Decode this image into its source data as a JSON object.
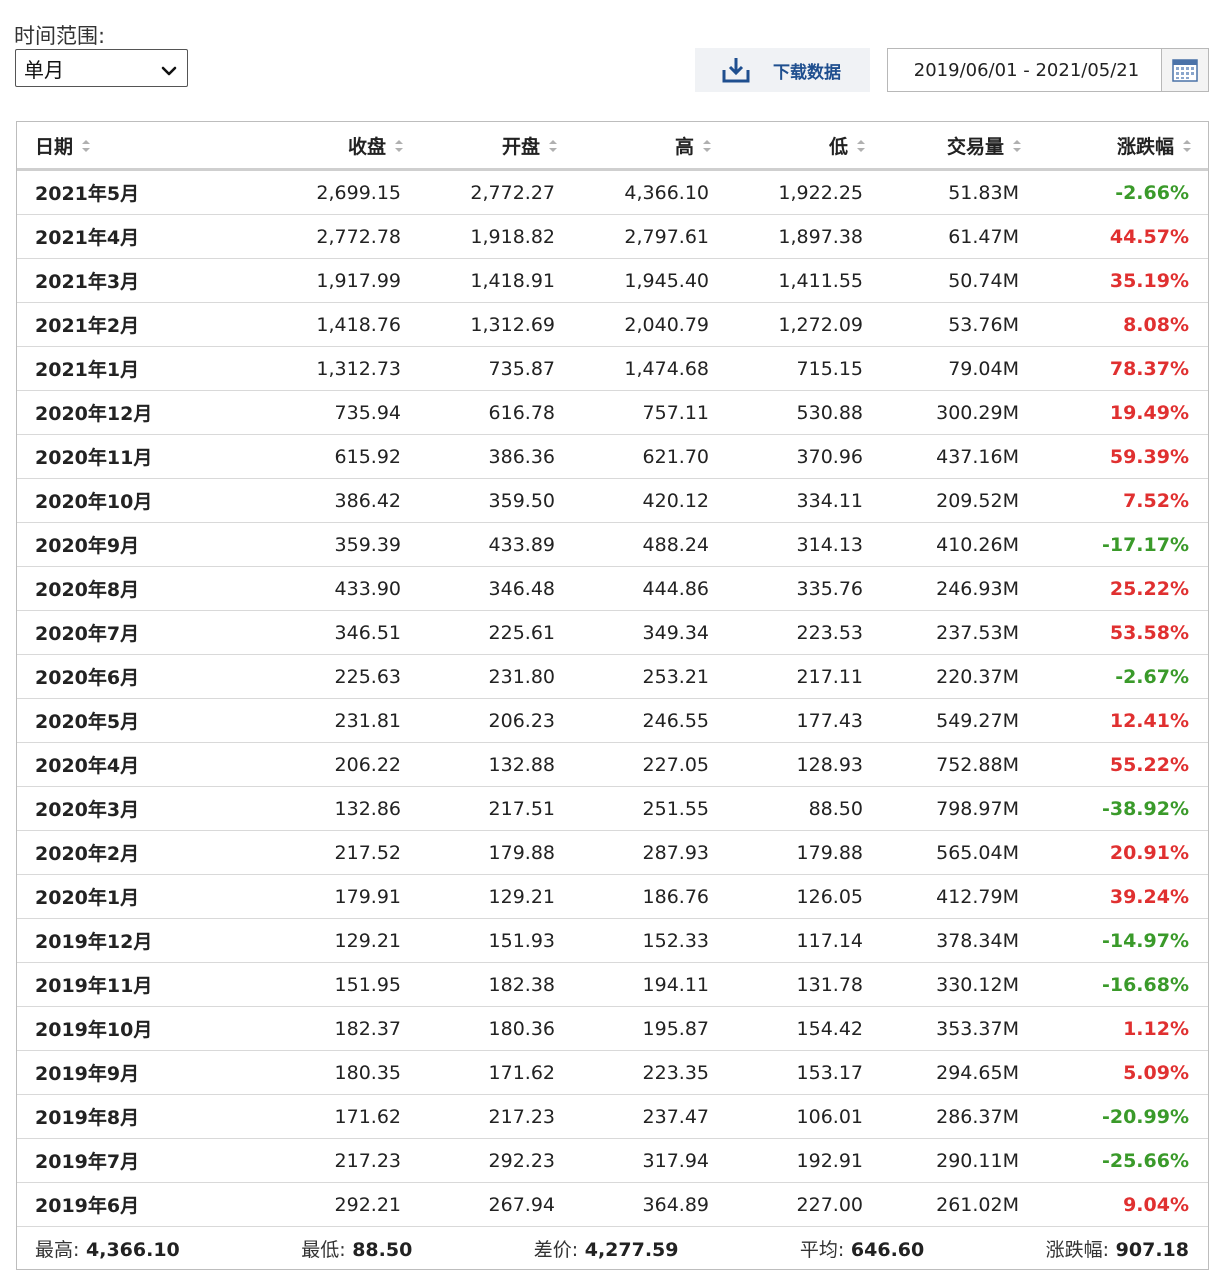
{
  "controls": {
    "range_label": "时间范围:",
    "range_value": "单月",
    "download_label": "下载数据",
    "date_range": "2019/06/01 - 2021/05/21"
  },
  "colors": {
    "up": "#e03030",
    "down": "#3a9a2a",
    "link": "#1f4f8f"
  },
  "table": {
    "headers": [
      "日期",
      "收盘",
      "开盘",
      "高",
      "低",
      "交易量",
      "涨跌幅"
    ],
    "rows": [
      {
        "date": "2021年5月",
        "close": "2,699.15",
        "open": "2,772.27",
        "high": "4,366.10",
        "low": "1,922.25",
        "volume": "51.83M",
        "change": "-2.66%",
        "dir": "down"
      },
      {
        "date": "2021年4月",
        "close": "2,772.78",
        "open": "1,918.82",
        "high": "2,797.61",
        "low": "1,897.38",
        "volume": "61.47M",
        "change": "44.57%",
        "dir": "up"
      },
      {
        "date": "2021年3月",
        "close": "1,917.99",
        "open": "1,418.91",
        "high": "1,945.40",
        "low": "1,411.55",
        "volume": "50.74M",
        "change": "35.19%",
        "dir": "up"
      },
      {
        "date": "2021年2月",
        "close": "1,418.76",
        "open": "1,312.69",
        "high": "2,040.79",
        "low": "1,272.09",
        "volume": "53.76M",
        "change": "8.08%",
        "dir": "up"
      },
      {
        "date": "2021年1月",
        "close": "1,312.73",
        "open": "735.87",
        "high": "1,474.68",
        "low": "715.15",
        "volume": "79.04M",
        "change": "78.37%",
        "dir": "up"
      },
      {
        "date": "2020年12月",
        "close": "735.94",
        "open": "616.78",
        "high": "757.11",
        "low": "530.88",
        "volume": "300.29M",
        "change": "19.49%",
        "dir": "up"
      },
      {
        "date": "2020年11月",
        "close": "615.92",
        "open": "386.36",
        "high": "621.70",
        "low": "370.96",
        "volume": "437.16M",
        "change": "59.39%",
        "dir": "up"
      },
      {
        "date": "2020年10月",
        "close": "386.42",
        "open": "359.50",
        "high": "420.12",
        "low": "334.11",
        "volume": "209.52M",
        "change": "7.52%",
        "dir": "up"
      },
      {
        "date": "2020年9月",
        "close": "359.39",
        "open": "433.89",
        "high": "488.24",
        "low": "314.13",
        "volume": "410.26M",
        "change": "-17.17%",
        "dir": "down"
      },
      {
        "date": "2020年8月",
        "close": "433.90",
        "open": "346.48",
        "high": "444.86",
        "low": "335.76",
        "volume": "246.93M",
        "change": "25.22%",
        "dir": "up"
      },
      {
        "date": "2020年7月",
        "close": "346.51",
        "open": "225.61",
        "high": "349.34",
        "low": "223.53",
        "volume": "237.53M",
        "change": "53.58%",
        "dir": "up"
      },
      {
        "date": "2020年6月",
        "close": "225.63",
        "open": "231.80",
        "high": "253.21",
        "low": "217.11",
        "volume": "220.37M",
        "change": "-2.67%",
        "dir": "down"
      },
      {
        "date": "2020年5月",
        "close": "231.81",
        "open": "206.23",
        "high": "246.55",
        "low": "177.43",
        "volume": "549.27M",
        "change": "12.41%",
        "dir": "up"
      },
      {
        "date": "2020年4月",
        "close": "206.22",
        "open": "132.88",
        "high": "227.05",
        "low": "128.93",
        "volume": "752.88M",
        "change": "55.22%",
        "dir": "up"
      },
      {
        "date": "2020年3月",
        "close": "132.86",
        "open": "217.51",
        "high": "251.55",
        "low": "88.50",
        "volume": "798.97M",
        "change": "-38.92%",
        "dir": "down"
      },
      {
        "date": "2020年2月",
        "close": "217.52",
        "open": "179.88",
        "high": "287.93",
        "low": "179.88",
        "volume": "565.04M",
        "change": "20.91%",
        "dir": "up"
      },
      {
        "date": "2020年1月",
        "close": "179.91",
        "open": "129.21",
        "high": "186.76",
        "low": "126.05",
        "volume": "412.79M",
        "change": "39.24%",
        "dir": "up"
      },
      {
        "date": "2019年12月",
        "close": "129.21",
        "open": "151.93",
        "high": "152.33",
        "low": "117.14",
        "volume": "378.34M",
        "change": "-14.97%",
        "dir": "down"
      },
      {
        "date": "2019年11月",
        "close": "151.95",
        "open": "182.38",
        "high": "194.11",
        "low": "131.78",
        "volume": "330.12M",
        "change": "-16.68%",
        "dir": "down"
      },
      {
        "date": "2019年10月",
        "close": "182.37",
        "open": "180.36",
        "high": "195.87",
        "low": "154.42",
        "volume": "353.37M",
        "change": "1.12%",
        "dir": "up"
      },
      {
        "date": "2019年9月",
        "close": "180.35",
        "open": "171.62",
        "high": "223.35",
        "low": "153.17",
        "volume": "294.65M",
        "change": "5.09%",
        "dir": "up"
      },
      {
        "date": "2019年8月",
        "close": "171.62",
        "open": "217.23",
        "high": "237.47",
        "low": "106.01",
        "volume": "286.37M",
        "change": "-20.99%",
        "dir": "down"
      },
      {
        "date": "2019年7月",
        "close": "217.23",
        "open": "292.23",
        "high": "317.94",
        "low": "192.91",
        "volume": "290.11M",
        "change": "-25.66%",
        "dir": "down"
      },
      {
        "date": "2019年6月",
        "close": "292.21",
        "open": "267.94",
        "high": "364.89",
        "low": "227.00",
        "volume": "261.02M",
        "change": "9.04%",
        "dir": "up"
      }
    ]
  },
  "summary": [
    {
      "label": "最高:",
      "value": "4,366.10"
    },
    {
      "label": "最低:",
      "value": "88.50"
    },
    {
      "label": "差价:",
      "value": "4,277.59"
    },
    {
      "label": "平均:",
      "value": "646.60"
    },
    {
      "label": "涨跌幅:",
      "value": "907.18"
    }
  ],
  "icons": {
    "select_arrow": "chevron-down-icon",
    "download": "download-icon",
    "calendar": "calendar-icon",
    "sort": "sort-icon"
  }
}
